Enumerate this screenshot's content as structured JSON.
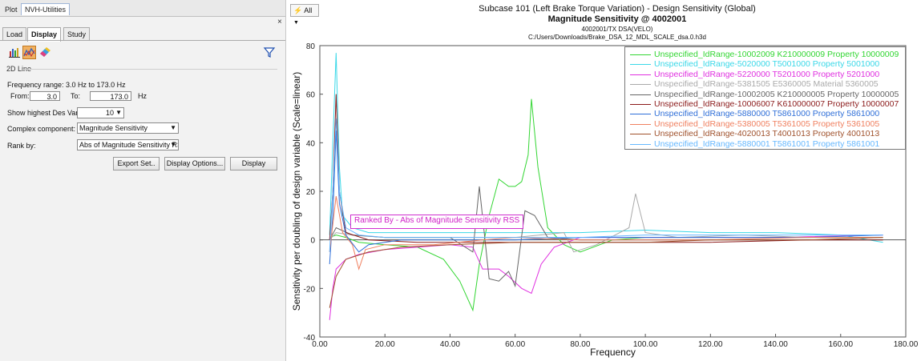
{
  "top_tabs": [
    "Plot",
    "NVH-Utilities"
  ],
  "close_icon": "×",
  "sub_tabs": [
    "Load",
    "Display",
    "Study"
  ],
  "toolbar_icons": [
    "bar-chart-icon",
    "line-chart-icon",
    "eraser-icon",
    "filter-icon"
  ],
  "section_title": "2D Line",
  "freq": {
    "range_label": "Frequency range: 3.0 Hz to 173.0 Hz",
    "from_label": "From:",
    "from_value": "3.0",
    "to_label": "To:",
    "to_value": "173.0",
    "unit": "Hz"
  },
  "show_highest": {
    "label": "Show highest Des Var:",
    "value": "10"
  },
  "complex": {
    "label": "Complex component:",
    "value": "Magnitude Sensitivity"
  },
  "rank": {
    "label": "Rank by:",
    "value": "Abs of Magnitude Sensitivity RS"
  },
  "buttons": {
    "export": "Export Set..",
    "options": "Display Options...",
    "display": "Display"
  },
  "all_button": "All",
  "chart_title": {
    "line1": "Subcase 101 (Left Brake Torque Variation) - Design Sensitivity (Global)",
    "line2": "Magnitude Sensitivity @ 4002001",
    "line3": "4002001/TX DSA(VELO)",
    "line4": "C:/Users/Downloads/Brake_DSA_12_MDL_SCALE_dsa.0.h3d"
  },
  "rank_annotation": "Ranked By - Abs of Magnitude Sensitivity RSS",
  "chart_data": {
    "type": "line",
    "xlabel": "Frequency",
    "ylabel": "Sensitivity per doubling of design variable (Scale=linear)",
    "xlim": [
      0,
      180
    ],
    "ylim": [
      -40,
      80
    ],
    "xticks": [
      "0.00",
      "20.00",
      "40.00",
      "60.00",
      "80.00",
      "100.00",
      "120.00",
      "140.00",
      "160.00",
      "180.00"
    ],
    "yticks": [
      "-40",
      "-20",
      "0",
      "20",
      "40",
      "60",
      "80"
    ],
    "grid": false,
    "legend_position": "top-right",
    "series": [
      {
        "name": "Unspecified_IdRange-10002009 K210000009 Property 10000009",
        "color": "#33d633",
        "points": [
          [
            3,
            1
          ],
          [
            5,
            2
          ],
          [
            8,
            1
          ],
          [
            12,
            -1
          ],
          [
            20,
            -2
          ],
          [
            30,
            -3
          ],
          [
            38,
            -8
          ],
          [
            43,
            -17
          ],
          [
            47,
            -29
          ],
          [
            49,
            -10
          ],
          [
            52,
            10
          ],
          [
            55,
            25
          ],
          [
            58,
            22
          ],
          [
            60,
            22
          ],
          [
            62,
            24
          ],
          [
            64,
            35
          ],
          [
            65,
            58
          ],
          [
            67,
            30
          ],
          [
            70,
            5
          ],
          [
            75,
            -2
          ],
          [
            80,
            -5
          ],
          [
            90,
            0
          ],
          [
            100,
            1
          ],
          [
            120,
            1
          ],
          [
            140,
            1
          ],
          [
            160,
            1
          ],
          [
            173,
            1
          ]
        ]
      },
      {
        "name": "Unspecified_IdRange-5020000 T5001000 Property 5001000",
        "color": "#3ad8e8",
        "points": [
          [
            3,
            2
          ],
          [
            4,
            40
          ],
          [
            5,
            77
          ],
          [
            6,
            30
          ],
          [
            7,
            10
          ],
          [
            10,
            5
          ],
          [
            15,
            3
          ],
          [
            25,
            3
          ],
          [
            40,
            3
          ],
          [
            60,
            3
          ],
          [
            80,
            3
          ],
          [
            100,
            4
          ],
          [
            120,
            3
          ],
          [
            140,
            3
          ],
          [
            160,
            2
          ],
          [
            173,
            -1
          ]
        ]
      },
      {
        "name": "Unspecified_IdRange-5220000 T5201000 Property 5201000",
        "color": "#e030e0",
        "points": [
          [
            3,
            -33
          ],
          [
            4,
            -20
          ],
          [
            5,
            -12
          ],
          [
            8,
            -8
          ],
          [
            12,
            -6
          ],
          [
            20,
            -4
          ],
          [
            30,
            -3
          ],
          [
            40,
            -2
          ],
          [
            47,
            -3
          ],
          [
            50,
            -12
          ],
          [
            55,
            -12
          ],
          [
            58,
            -15
          ],
          [
            62,
            -20
          ],
          [
            65,
            -22
          ],
          [
            68,
            -10
          ],
          [
            72,
            -3
          ],
          [
            80,
            1
          ],
          [
            100,
            1
          ],
          [
            120,
            1
          ],
          [
            140,
            1
          ],
          [
            173,
            2
          ]
        ]
      },
      {
        "name": "Unspecified_IdRange-5381505 E5360005 Material 5360005",
        "color": "#aaaaaa",
        "points": [
          [
            3,
            0
          ],
          [
            5,
            3
          ],
          [
            10,
            2
          ],
          [
            20,
            1
          ],
          [
            40,
            1
          ],
          [
            60,
            1
          ],
          [
            75,
            3
          ],
          [
            78,
            -5
          ],
          [
            85,
            -2
          ],
          [
            95,
            5
          ],
          [
            97,
            19
          ],
          [
            100,
            3
          ],
          [
            110,
            1
          ],
          [
            130,
            2
          ],
          [
            150,
            1
          ],
          [
            173,
            1
          ]
        ]
      },
      {
        "name": "Unspecified_IdRange-10002005 K210000005 Property 10000005",
        "color": "#666666",
        "points": [
          [
            3,
            0
          ],
          [
            5,
            5
          ],
          [
            10,
            2
          ],
          [
            20,
            1
          ],
          [
            40,
            1
          ],
          [
            47,
            -5
          ],
          [
            49,
            22
          ],
          [
            52,
            -16
          ],
          [
            55,
            -17
          ],
          [
            58,
            -13
          ],
          [
            60,
            -19
          ],
          [
            63,
            12
          ],
          [
            66,
            10
          ],
          [
            70,
            1
          ],
          [
            80,
            0
          ],
          [
            100,
            0
          ],
          [
            120,
            0
          ],
          [
            140,
            0
          ],
          [
            173,
            0
          ]
        ]
      },
      {
        "name": "Unspecified_IdRange-10006007 K610000007 Property 10000007",
        "color": "#8b1a1a",
        "points": [
          [
            3,
            0
          ],
          [
            4,
            20
          ],
          [
            5,
            60
          ],
          [
            6,
            20
          ],
          [
            8,
            3
          ],
          [
            15,
            0
          ],
          [
            30,
            -1
          ],
          [
            50,
            -1
          ],
          [
            70,
            -1
          ],
          [
            90,
            -1
          ],
          [
            120,
            -1
          ],
          [
            150,
            0
          ],
          [
            173,
            0
          ]
        ]
      },
      {
        "name": "Unspecified_IdRange-5880000 T5861000 Property 5861000",
        "color": "#2f6fd8",
        "points": [
          [
            3,
            -10
          ],
          [
            4,
            10
          ],
          [
            5,
            45
          ],
          [
            6,
            15
          ],
          [
            8,
            2
          ],
          [
            12,
            -5
          ],
          [
            15,
            -2
          ],
          [
            25,
            0
          ],
          [
            40,
            0
          ],
          [
            60,
            0
          ],
          [
            80,
            1
          ],
          [
            100,
            1
          ],
          [
            120,
            1
          ],
          [
            150,
            1
          ],
          [
            173,
            2
          ]
        ]
      },
      {
        "name": "Unspecified_IdRange-5380005 T5361005 Property 5361005",
        "color": "#f08060",
        "points": [
          [
            3,
            -5
          ],
          [
            5,
            18
          ],
          [
            7,
            3
          ],
          [
            10,
            -2
          ],
          [
            12,
            -12
          ],
          [
            14,
            -4
          ],
          [
            20,
            -2
          ],
          [
            35,
            -2
          ],
          [
            50,
            0
          ],
          [
            60,
            1
          ],
          [
            80,
            0
          ],
          [
            100,
            0
          ],
          [
            120,
            0
          ],
          [
            150,
            1
          ],
          [
            173,
            1
          ]
        ]
      },
      {
        "name": "Unspecified_IdRange-4020013 T4001013 Property 4001013",
        "color": "#a0522d",
        "points": [
          [
            3,
            -28
          ],
          [
            5,
            -15
          ],
          [
            8,
            -8
          ],
          [
            15,
            -5
          ],
          [
            25,
            -3
          ],
          [
            40,
            -2
          ],
          [
            60,
            -1
          ],
          [
            80,
            -1
          ],
          [
            100,
            -1
          ],
          [
            120,
            0
          ],
          [
            150,
            0
          ],
          [
            173,
            1
          ]
        ]
      },
      {
        "name": "Unspecified_IdRange-5880001 T5861001 Property 5861001",
        "color": "#66b8ff",
        "points": [
          [
            3,
            -5
          ],
          [
            4,
            20
          ],
          [
            5,
            50
          ],
          [
            6,
            20
          ],
          [
            8,
            5
          ],
          [
            12,
            2
          ],
          [
            20,
            1
          ],
          [
            40,
            1
          ],
          [
            60,
            1
          ],
          [
            80,
            1
          ],
          [
            100,
            2
          ],
          [
            120,
            2
          ],
          [
            150,
            2
          ],
          [
            173,
            2
          ]
        ]
      }
    ]
  }
}
